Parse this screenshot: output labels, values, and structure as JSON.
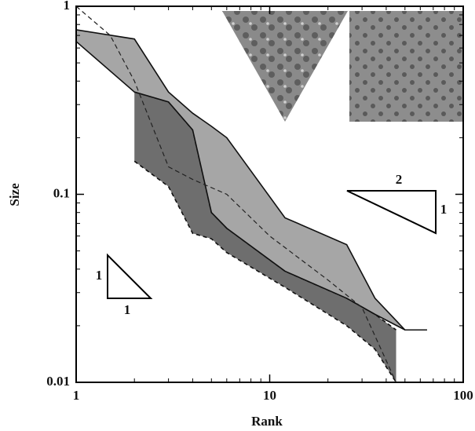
{
  "chart_data": {
    "type": "band",
    "x_label": "Rank",
    "y_label": "Size",
    "xscale": "log",
    "yscale": "log",
    "xlim": [
      1,
      100
    ],
    "ylim": [
      0.01,
      1
    ],
    "xticks": [
      1,
      10,
      100
    ],
    "yticks": [
      0.01,
      0.1,
      1
    ],
    "bands": [
      {
        "color": "#6e6e6e",
        "border": "dashed",
        "x": [
          2,
          3,
          4,
          5,
          6,
          12,
          25,
          35,
          45
        ],
        "high": [
          0.35,
          0.31,
          0.22,
          0.08,
          0.066,
          0.039,
          0.028,
          0.023,
          0.019
        ],
        "low": [
          0.15,
          0.11,
          0.062,
          0.058,
          0.049,
          0.032,
          0.02,
          0.015,
          0.01
        ]
      },
      {
        "color": "#a6a6a6",
        "border": "solid",
        "x": [
          1,
          2,
          3,
          4,
          5,
          6,
          12,
          25,
          35,
          50,
          65
        ],
        "high": [
          0.75,
          0.67,
          0.35,
          0.27,
          0.23,
          0.2,
          0.075,
          0.054,
          0.028,
          0.019,
          0.019
        ],
        "low": [
          0.65,
          0.35,
          0.31,
          0.22,
          0.08,
          0.066,
          0.039,
          0.028,
          0.023,
          0.019,
          0.019
        ]
      }
    ],
    "line": {
      "color": "#222222",
      "style": "dashed",
      "x": [
        1,
        1.5,
        2,
        3,
        4,
        6,
        10,
        20,
        30,
        45
      ],
      "values": [
        1,
        0.7,
        0.4,
        0.14,
        0.12,
        0.1,
        0.06,
        0.035,
        0.025,
        0.01
      ]
    },
    "annotations": [
      "1",
      "1",
      "2",
      "1"
    ]
  }
}
